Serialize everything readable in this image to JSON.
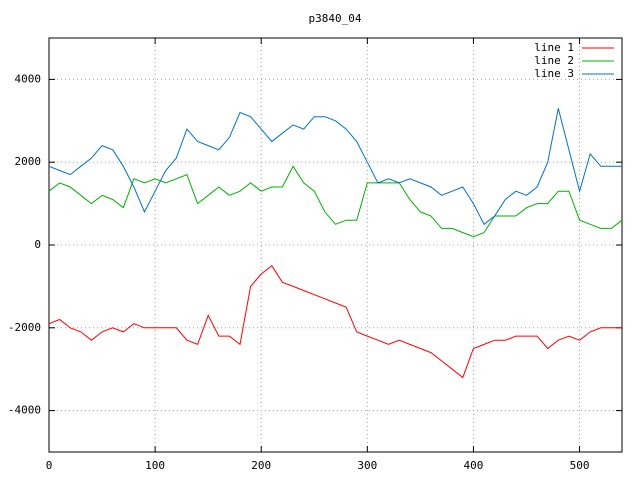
{
  "chart_data": {
    "type": "line",
    "title": "p3840_04",
    "x": [
      0,
      10,
      20,
      30,
      40,
      50,
      60,
      70,
      80,
      90,
      100,
      110,
      120,
      130,
      140,
      150,
      160,
      170,
      180,
      190,
      200,
      210,
      220,
      230,
      240,
      250,
      260,
      270,
      280,
      290,
      300,
      310,
      320,
      330,
      340,
      350,
      360,
      370,
      380,
      390,
      400,
      410,
      420,
      430,
      440,
      450,
      460,
      470,
      480,
      490,
      500,
      510,
      520,
      530,
      540
    ],
    "series": [
      {
        "name": "line 1",
        "color": "#ff0000",
        "values": [
          -1900,
          -1800,
          -2000,
          -2100,
          -2300,
          -2100,
          -2000,
          -2100,
          -1900,
          -2000,
          -2000,
          -2000,
          -2000,
          -2300,
          -2400,
          -1700,
          -2200,
          -2200,
          -2400,
          -1000,
          -700,
          -500,
          -900,
          -1000,
          -1100,
          -1200,
          -1300,
          -1400,
          -1500,
          -2100,
          -2200,
          -2300,
          -2400,
          -2300,
          -2400,
          -2500,
          -2600,
          -2800,
          -3000,
          -3200,
          -2500,
          -2400,
          -2300,
          -2300,
          -2200,
          -2200,
          -2200,
          -2500,
          -2300,
          -2200,
          -2300,
          -2100,
          -2000,
          -2000,
          -2000
        ]
      },
      {
        "name": "line 2",
        "color": "#00b000",
        "values": [
          1300,
          1500,
          1400,
          1200,
          1000,
          1200,
          1100,
          900,
          1600,
          1500,
          1600,
          1500,
          1600,
          1700,
          1000,
          1200,
          1400,
          1200,
          1300,
          1500,
          1300,
          1400,
          1400,
          1900,
          1500,
          1300,
          800,
          500,
          600,
          600,
          1500,
          1500,
          1500,
          1500,
          1100,
          800,
          700,
          400,
          400,
          300,
          200,
          300,
          700,
          700,
          700,
          900,
          1000,
          1000,
          1300,
          1300,
          600,
          500,
          400,
          400,
          600
        ]
      },
      {
        "name": "line 3",
        "color": "#0070d0",
        "values": [
          1900,
          1800,
          1700,
          1900,
          2100,
          2400,
          2300,
          1900,
          1400,
          800,
          1300,
          1800,
          2100,
          2800,
          2500,
          2400,
          2300,
          2600,
          3200,
          3100,
          2800,
          2500,
          2700,
          2900,
          2800,
          3100,
          3100,
          3000,
          2800,
          2500,
          2000,
          1500,
          1600,
          1500,
          1600,
          1500,
          1400,
          1200,
          1300,
          1400,
          1000,
          500,
          700,
          1100,
          1300,
          1200,
          1400,
          2000,
          3300,
          2300,
          1300,
          2200,
          1900,
          1900,
          1900
        ]
      }
    ],
    "xlim": [
      0,
      540
    ],
    "ylim": [
      -5000,
      5000
    ],
    "xticks": [
      0,
      100,
      200,
      300,
      400,
      500
    ],
    "yticks": [
      -4000,
      -2000,
      0,
      2000,
      4000
    ],
    "grid": true,
    "legend": "top-right"
  }
}
